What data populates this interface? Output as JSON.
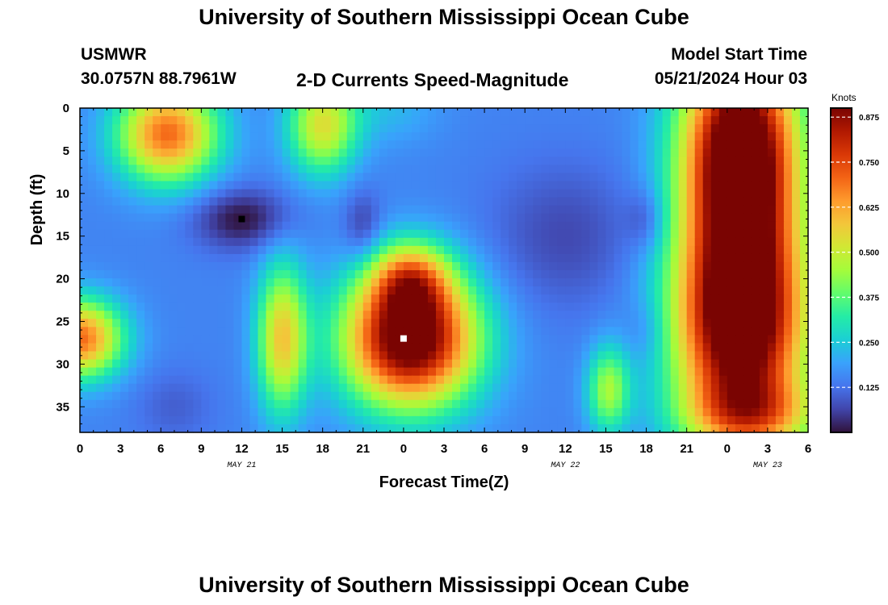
{
  "header": {
    "title": "University of Southern Mississippi Ocean Cube",
    "station_id": "USMWR",
    "coordinates": "30.0757N  88.7961W",
    "plot_title": "2-D Currents Speed-Magnitude",
    "model_start_label": "Model Start Time",
    "model_start_value": "05/21/2024 Hour 03"
  },
  "footer": {
    "title": "University of Southern Mississippi Ocean Cube"
  },
  "chart_data": {
    "type": "heatmap",
    "title": "2-D Currents Speed-Magnitude",
    "xlabel": "Forecast Time(Z)",
    "ylabel": "Depth (ft)",
    "x_range_hours": [
      0,
      54
    ],
    "y_range": [
      0,
      38
    ],
    "x_ticks": [
      {
        "hour": 0,
        "label": "0"
      },
      {
        "hour": 3,
        "label": "3"
      },
      {
        "hour": 6,
        "label": "6"
      },
      {
        "hour": 9,
        "label": "9"
      },
      {
        "hour": 12,
        "label": "12"
      },
      {
        "hour": 15,
        "label": "15"
      },
      {
        "hour": 18,
        "label": "18"
      },
      {
        "hour": 21,
        "label": "21"
      },
      {
        "hour": 24,
        "label": "0"
      },
      {
        "hour": 27,
        "label": "3"
      },
      {
        "hour": 30,
        "label": "6"
      },
      {
        "hour": 33,
        "label": "9"
      },
      {
        "hour": 36,
        "label": "12"
      },
      {
        "hour": 39,
        "label": "15"
      },
      {
        "hour": 42,
        "label": "18"
      },
      {
        "hour": 45,
        "label": "21"
      },
      {
        "hour": 48,
        "label": "0"
      },
      {
        "hour": 51,
        "label": "3"
      },
      {
        "hour": 54,
        "label": "6"
      }
    ],
    "date_labels": [
      {
        "hour": 12,
        "label": "MAY 21"
      },
      {
        "hour": 36,
        "label": "MAY 22"
      },
      {
        "hour": 51,
        "label": "MAY 23"
      }
    ],
    "y_ticks": [
      0,
      5,
      10,
      15,
      20,
      25,
      30,
      35
    ],
    "colorbar": {
      "title": "Knots",
      "min": 0,
      "max": 0.9,
      "ticks": [
        "0.125",
        "0.250",
        "0.375",
        "0.500",
        "0.625",
        "0.750",
        "0.875"
      ],
      "colormap": [
        "#30123b",
        "#4145ab",
        "#4675ed",
        "#39a2fc",
        "#1bcfd4",
        "#24eca6",
        "#61fc6c",
        "#a4fc3b",
        "#d1e834",
        "#f3c63a",
        "#fe9b2d",
        "#f36315",
        "#d93806",
        "#b11901",
        "#7a0402"
      ]
    },
    "field": {
      "base_speed": 0.15,
      "features": [
        {
          "hour": 6.5,
          "depth": 3,
          "sigma_hours": 2.6,
          "sigma_depth": 4,
          "amp": 0.55
        },
        {
          "hour": 18,
          "depth": 2,
          "sigma_hours": 1.8,
          "sigma_depth": 4,
          "amp": 0.38
        },
        {
          "hour": 0,
          "depth": 27,
          "sigma_hours": 2.2,
          "sigma_depth": 3.2,
          "amp": 0.55
        },
        {
          "hour": 15,
          "depth": 27,
          "sigma_hours": 1.3,
          "sigma_depth": 6,
          "amp": 0.42
        },
        {
          "hour": 24.5,
          "depth": 27,
          "sigma_hours": 3.4,
          "sigma_depth": 5.5,
          "amp": 0.85
        },
        {
          "hour": 24.5,
          "depth": 20,
          "sigma_hours": 2,
          "sigma_depth": 3,
          "amp": 0.35
        },
        {
          "hour": 39.2,
          "depth": 33,
          "sigma_hours": 1.1,
          "sigma_depth": 3.5,
          "amp": 0.3
        },
        {
          "hour": 49,
          "depth": 5,
          "sigma_hours": 3,
          "sigma_depth": 9,
          "amp": 0.9
        },
        {
          "hour": 49,
          "depth": 25,
          "sigma_hours": 3.4,
          "sigma_depth": 9,
          "amp": 0.9
        },
        {
          "hour": 50,
          "depth": 36,
          "sigma_hours": 3.6,
          "sigma_depth": 3,
          "amp": 0.3
        },
        {
          "hour": 23,
          "depth": 0,
          "sigma_hours": 2.5,
          "sigma_depth": 3,
          "amp": 0.07
        },
        {
          "hour": 12,
          "depth": 13,
          "sigma_hours": 2.5,
          "sigma_depth": 2.5,
          "amp": -0.15
        },
        {
          "hour": 21,
          "depth": 14,
          "sigma_hours": 1,
          "sigma_depth": 3,
          "amp": -0.1
        },
        {
          "hour": 36,
          "depth": 15,
          "sigma_hours": 4,
          "sigma_depth": 6,
          "amp": -0.08
        },
        {
          "hour": 42,
          "depth": 13,
          "sigma_hours": 1,
          "sigma_depth": 2.5,
          "amp": -0.08
        },
        {
          "hour": 7,
          "depth": 35,
          "sigma_hours": 2,
          "sigma_depth": 3,
          "amp": -0.05
        },
        {
          "hour": 42,
          "depth": 26,
          "sigma_hours": 1.2,
          "sigma_depth": 2.5,
          "amp": -0.05
        }
      ],
      "markers": [
        {
          "hour": 12,
          "depth": 13,
          "color": "#000000"
        },
        {
          "hour": 24,
          "depth": 27,
          "color": "#ffffff"
        }
      ]
    }
  }
}
